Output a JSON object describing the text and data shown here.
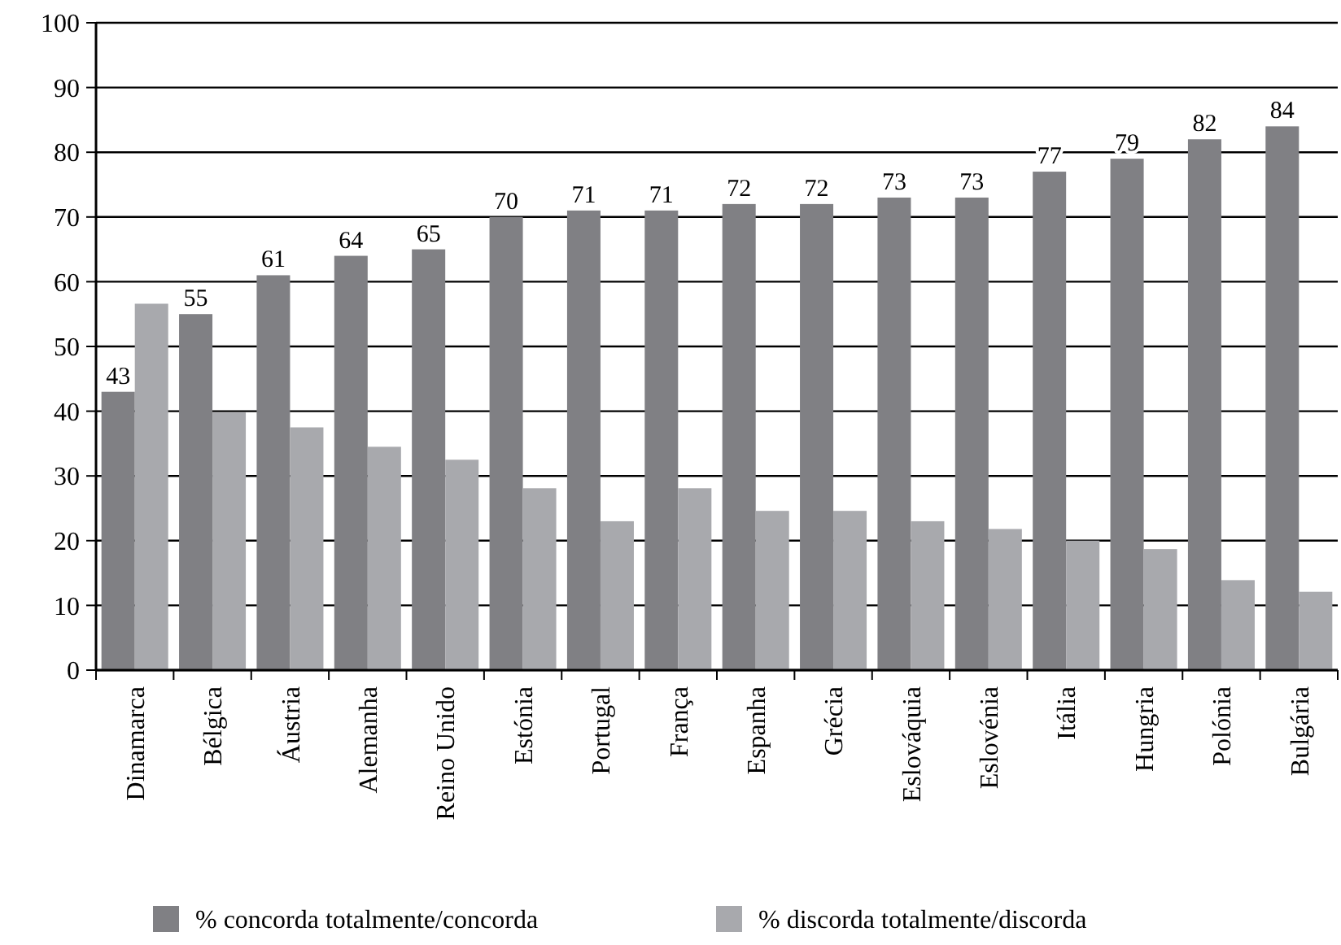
{
  "chart_data": {
    "type": "bar",
    "categories": [
      "Dinamarca",
      "Bélgica",
      "Áustria",
      "Alemanha",
      "Reino Unido",
      "Estónia",
      "Portugal",
      "França",
      "Espanha",
      "Grécia",
      "Eslováquia",
      "Eslovénia",
      "Itália",
      "Hungria",
      "Polónia",
      "Bulgária"
    ],
    "series": [
      {
        "name": "% concorda totalmente/concorda",
        "color": "#808084",
        "values": [
          43,
          55,
          61,
          64,
          65,
          70,
          71,
          71,
          72,
          72,
          73,
          73,
          77,
          79,
          82,
          84
        ],
        "value_labels": [
          "43",
          "55",
          "61",
          "64",
          "65",
          "70",
          "71",
          "71",
          "72",
          "72",
          "73",
          "73",
          "77",
          "79",
          "82",
          "84"
        ]
      },
      {
        "name": "% discorda totalmente/discorda",
        "color": "#a8a9ad",
        "values": [
          56.6,
          39.8,
          37.5,
          34.5,
          32.5,
          28.1,
          23,
          28.1,
          24.6,
          24.6,
          23,
          21.8,
          20,
          18.7,
          13.9,
          12.1
        ]
      }
    ],
    "ylim": [
      0,
      100
    ],
    "yticks": [
      0,
      10,
      20,
      30,
      40,
      50,
      60,
      70,
      80,
      90,
      100
    ],
    "grid": "y",
    "legend": "bottom"
  }
}
